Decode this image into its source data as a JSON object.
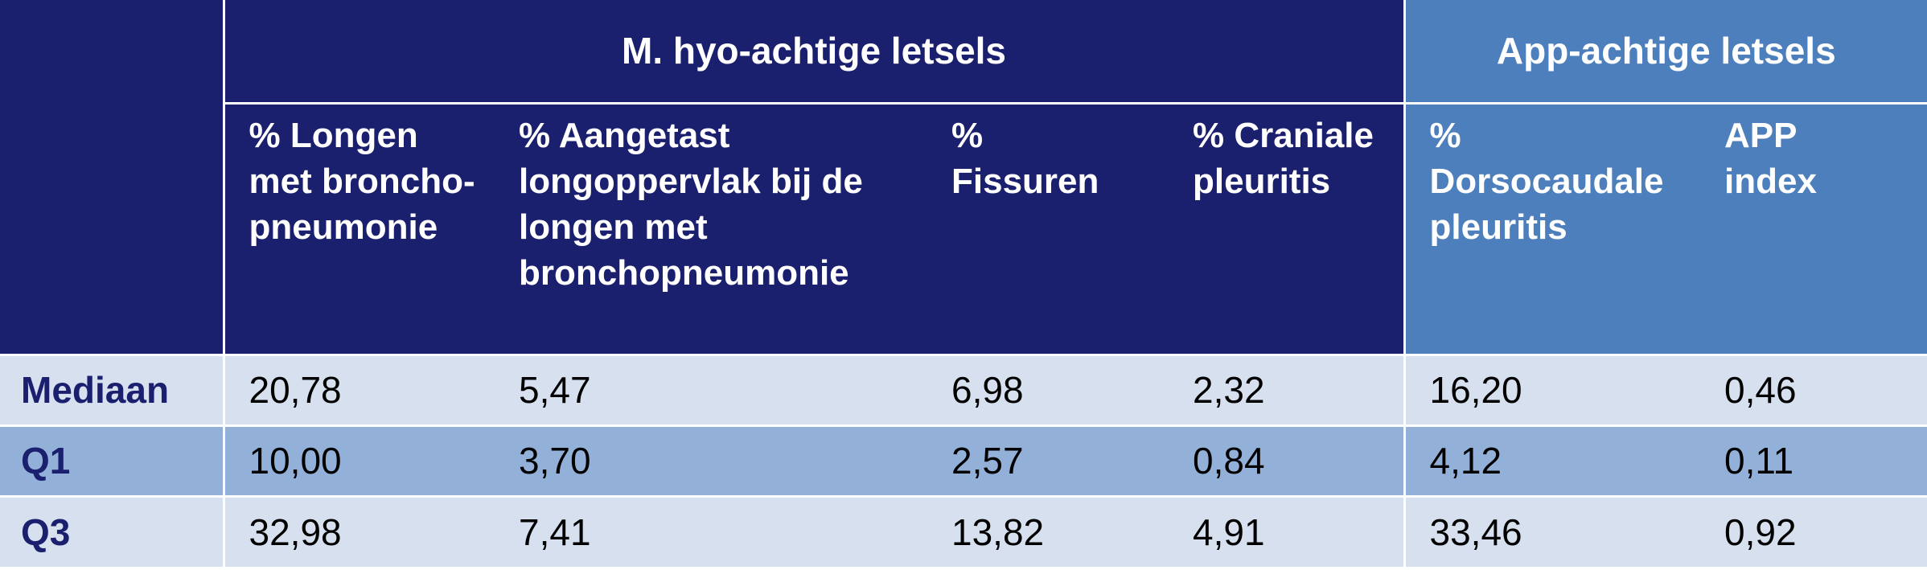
{
  "groups": {
    "mhyo": "M. hyo-achtige letsels",
    "app": "App-achtige letsels"
  },
  "columns": [
    "% Longen met broncho-pneumonie",
    "% Aangetast longoppervlak bij de longen met bronchopneumonie",
    "% Fissuren",
    "% Craniale pleuritis",
    "% Dorsocaudale pleuritis",
    "APP index"
  ],
  "rows": [
    {
      "label": "Mediaan",
      "values": [
        "20,78",
        "5,47",
        "6,98",
        "2,32",
        "16,20",
        "0,46"
      ]
    },
    {
      "label": "Q1",
      "values": [
        "10,00",
        "3,70",
        "2,57",
        "0,84",
        "4,12",
        "0,11"
      ]
    },
    {
      "label": "Q3",
      "values": [
        "32,98",
        "7,41",
        "13,82",
        "4,91",
        "33,46",
        "0,92"
      ]
    }
  ],
  "colors": {
    "header_dark": "#1a1f6e",
    "header_light": "#4d7fbd",
    "row_light": "#d6e0ef",
    "row_mid": "#93b1d8"
  }
}
